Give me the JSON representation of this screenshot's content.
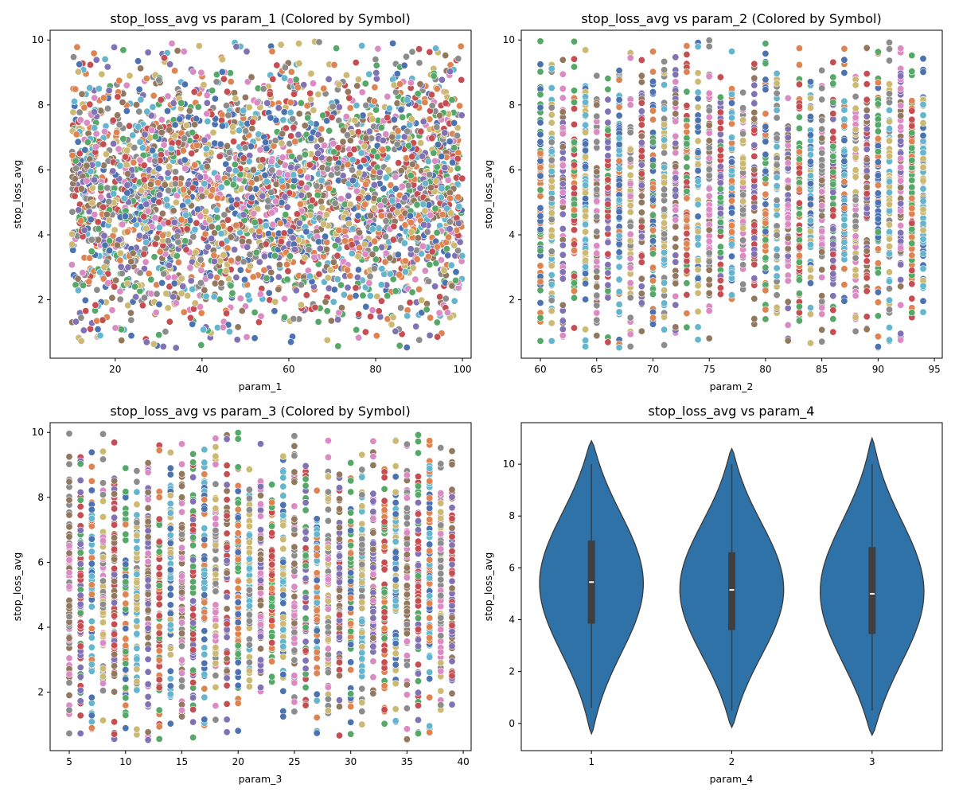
{
  "chart_data": [
    {
      "type": "scatter",
      "title": "stop_loss_avg vs param_1 (Colored by Symbol)",
      "xlabel": "param_1",
      "ylabel": "stop_loss_avg",
      "xlim": [
        5,
        102
      ],
      "ylim": [
        0.2,
        10.3
      ],
      "xticks": [
        20,
        40,
        60,
        80,
        100
      ],
      "yticks": [
        2,
        4,
        6,
        8,
        10
      ],
      "x_range": [
        10,
        100
      ],
      "y_range": [
        0.5,
        10
      ],
      "x_discrete": false,
      "point_count": 3200,
      "grid": false,
      "legend": "none"
    },
    {
      "type": "scatter",
      "title": "stop_loss_avg vs param_2 (Colored by Symbol)",
      "xlabel": "param_2",
      "ylabel": "stop_loss_avg",
      "xlim": [
        58.3,
        95.7
      ],
      "ylim": [
        0.2,
        10.3
      ],
      "xticks": [
        60,
        65,
        70,
        75,
        80,
        85,
        90,
        95
      ],
      "yticks": [
        2,
        4,
        6,
        8,
        10
      ],
      "x_range": [
        60,
        94
      ],
      "y_range": [
        0.5,
        10
      ],
      "x_discrete": true,
      "point_count": 3000,
      "grid": false,
      "legend": "none"
    },
    {
      "type": "scatter",
      "title": "stop_loss_avg vs param_3 (Colored by Symbol)",
      "xlabel": "param_3",
      "ylabel": "stop_loss_avg",
      "xlim": [
        3.3,
        40.7
      ],
      "ylim": [
        0.2,
        10.3
      ],
      "xticks": [
        5,
        10,
        15,
        20,
        25,
        30,
        35,
        40
      ],
      "yticks": [
        2,
        4,
        6,
        8,
        10
      ],
      "x_range": [
        5,
        39
      ],
      "y_range": [
        0.5,
        10
      ],
      "x_discrete": true,
      "point_count": 3000,
      "grid": false,
      "legend": "none"
    },
    {
      "type": "violin",
      "title": "stop_loss_avg vs param_4",
      "xlabel": "param_4",
      "ylabel": "stop_loss_avg",
      "categories": [
        "1",
        "2",
        "3"
      ],
      "ylim": [
        -1.05,
        11.6
      ],
      "yticks": [
        0,
        2,
        4,
        6,
        8,
        10
      ],
      "kde_range": [
        [
          -0.4,
          10.9
        ],
        [
          -0.15,
          10.6
        ],
        [
          -0.45,
          11.0
        ]
      ],
      "whisker": [
        [
          0.6,
          10.0
        ],
        [
          0.5,
          10.0
        ],
        [
          0.5,
          10.0
        ]
      ],
      "quartiles": [
        [
          3.85,
          7.05
        ],
        [
          3.6,
          6.6
        ],
        [
          3.45,
          6.8
        ]
      ],
      "median": [
        5.45,
        5.15,
        5.0
      ],
      "grid": false,
      "legend": "none"
    }
  ],
  "colors": {
    "palette": [
      "#4c72b0",
      "#dd8452",
      "#55a868",
      "#c44e52",
      "#8172b3",
      "#937860",
      "#da8bc3",
      "#8c8c8c",
      "#ccb974",
      "#64b5cd"
    ],
    "violin_fill": "#2e72a8",
    "violin_edge": "#3a3a3a",
    "box": "#3f3f3f",
    "median": "#ffffff"
  }
}
